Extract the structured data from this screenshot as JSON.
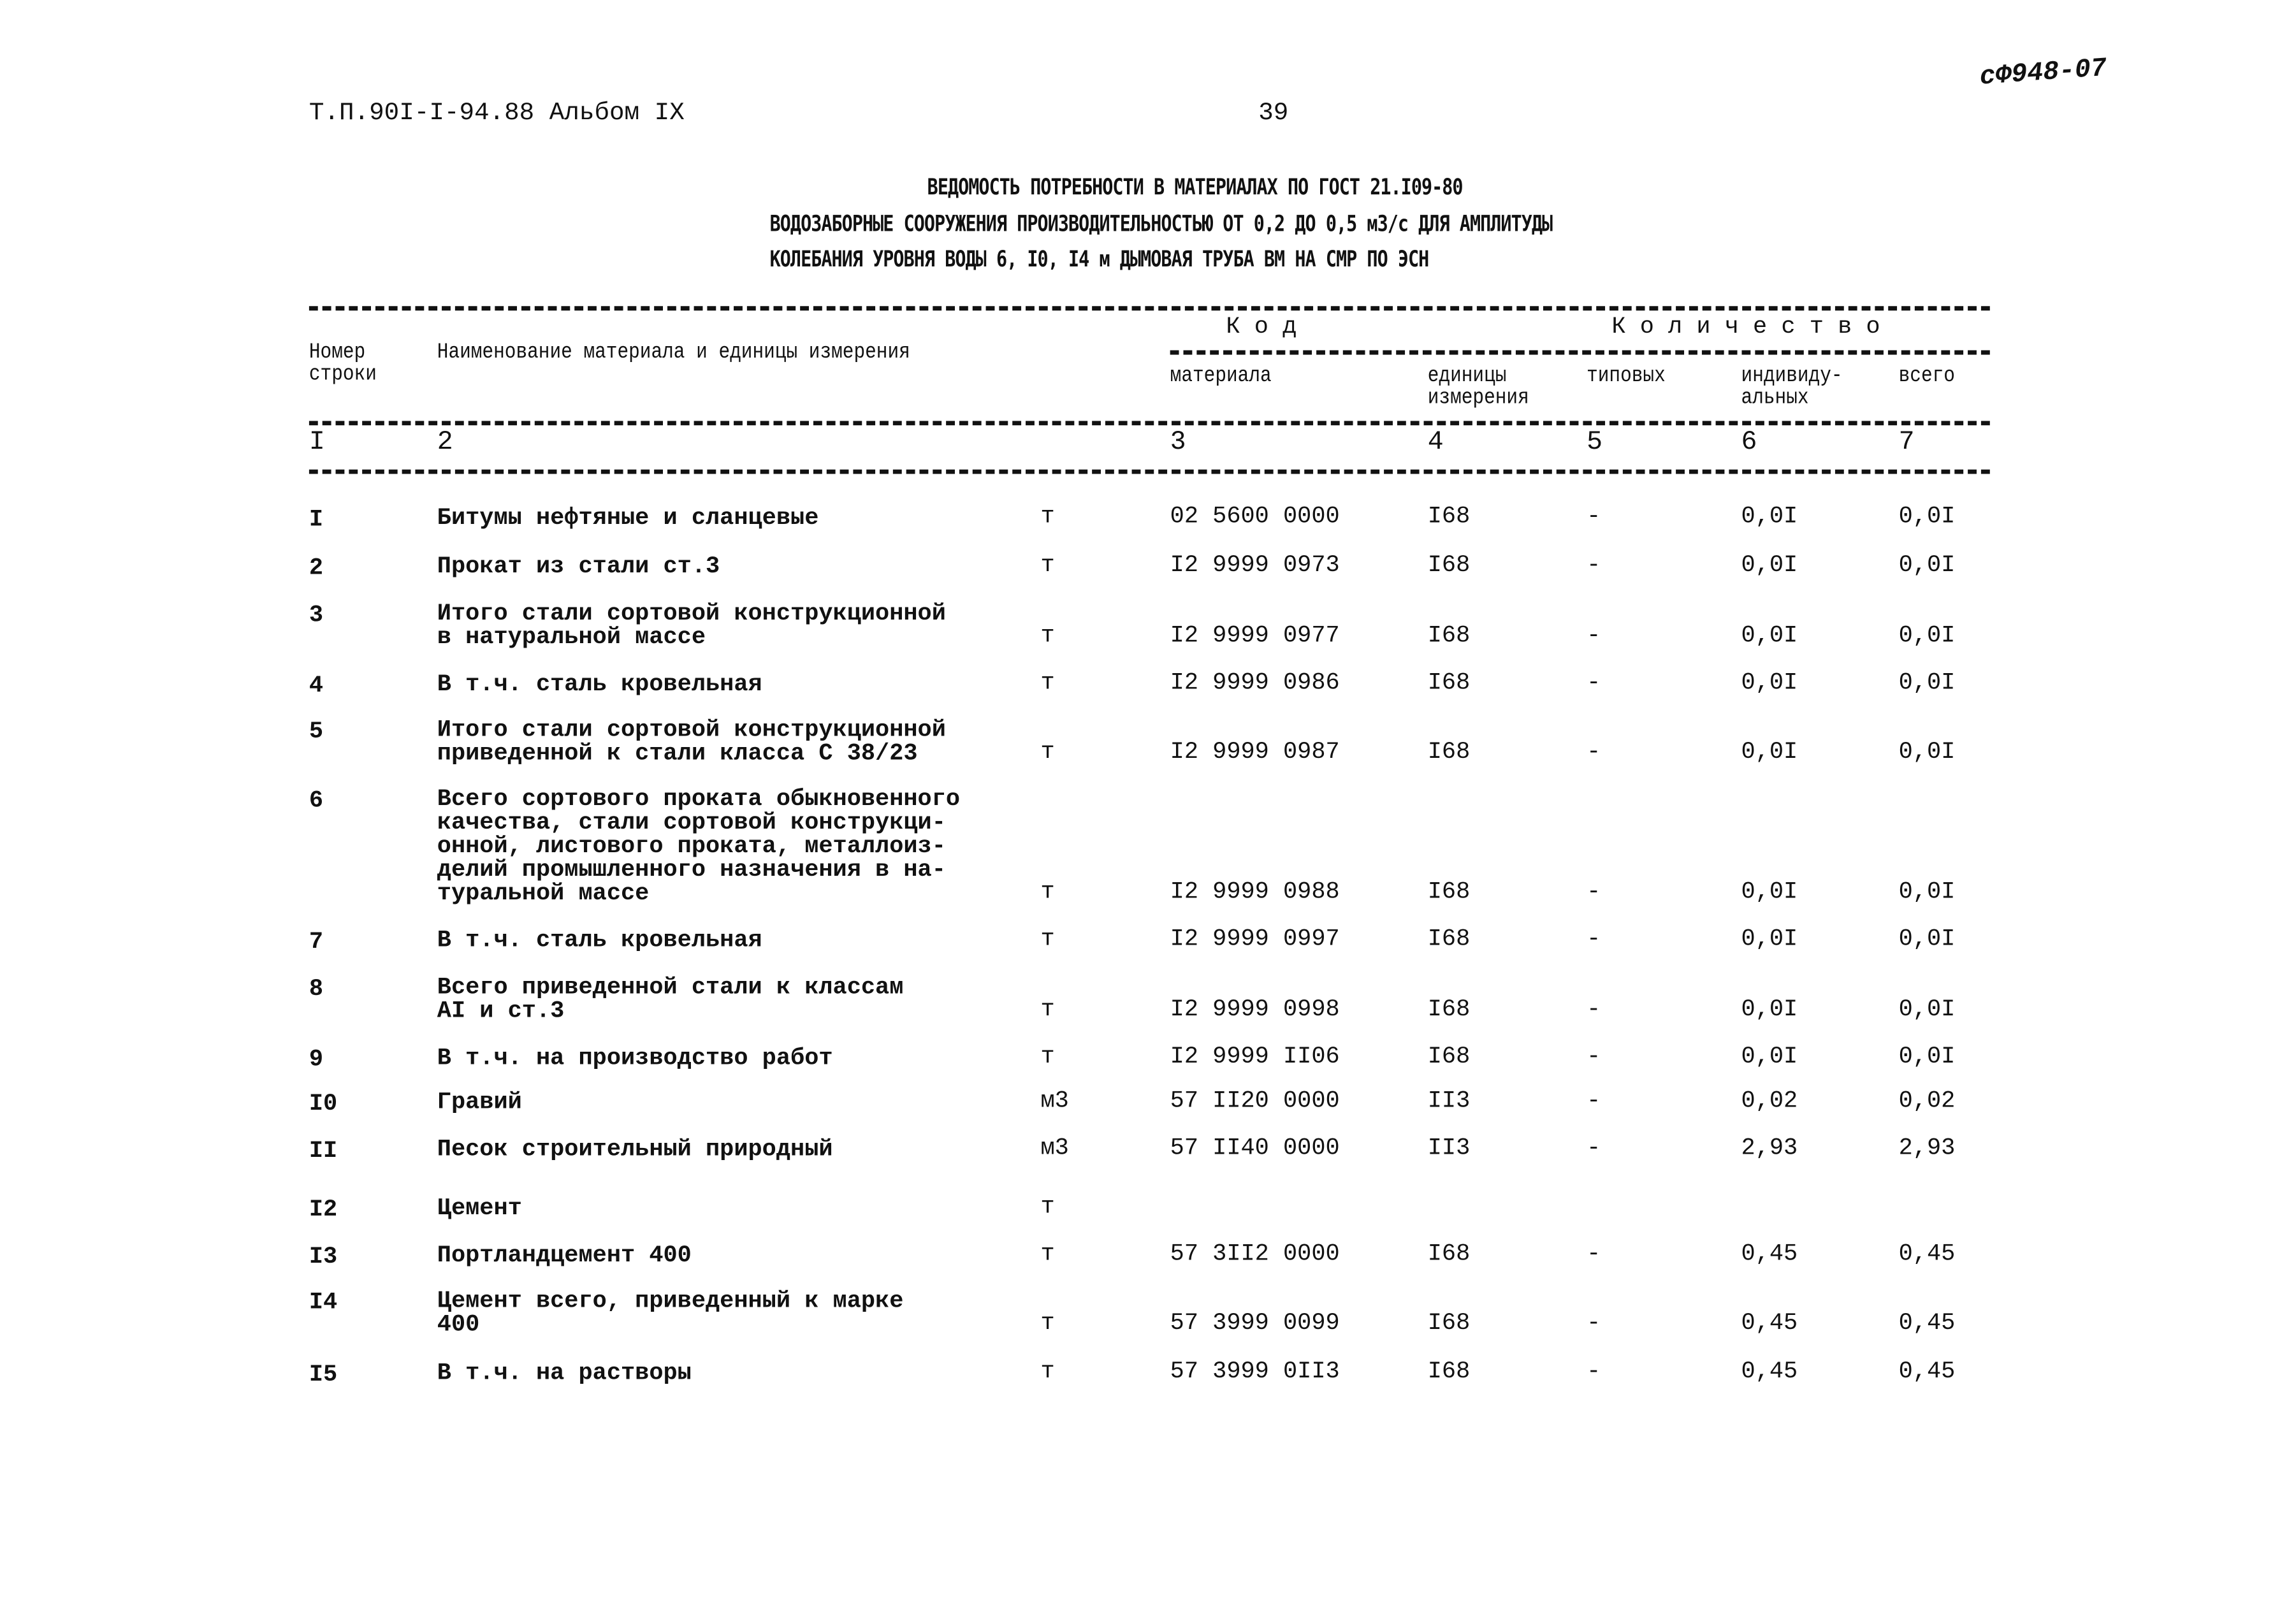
{
  "header": {
    "doc_ref": "Т.П.90I-I-94.88 Альбом IX",
    "page_number": "39",
    "handwritten_mark": "сФ948-07",
    "title_lines": [
      "ВЕДОМОСТЬ ПОТРЕБНОСТИ В МАТЕРИАЛАХ ПО ГОСТ 21.I09-80",
      "ВОДОЗАБОРНЫЕ СООРУЖЕНИЯ ПРОИЗВОДИТЕЛЬНОСТЬЮ ОТ 0,2 ДО 0,5 м3/с ДЛЯ АМПЛИТУДЫ",
      "КОЛЕБАНИЯ УРОВНЯ ВОДЫ 6, I0, I4 м   ДЫМОВАЯ ТРУБА    ВМ НА СМР ПО ЭСН"
    ]
  },
  "table": {
    "headers": {
      "row_no": "Номер\nстроки",
      "name": "Наименование материала и единицы измерения",
      "code_group": "К о д",
      "qty_group": "К о л и ч е с т в о",
      "material": "материала",
      "unit": "единицы\nизмерения",
      "typical": "типовых",
      "individual": "индивиду-\nальных",
      "total": "всего"
    },
    "column_numbers": [
      "I",
      "2",
      "3",
      "4",
      "5",
      "6",
      "7"
    ],
    "rows": [
      {
        "no": "I",
        "name": "Битумы нефтяные и сланцевые",
        "unit": "т",
        "code": "02 5600 0000",
        "unit_code": "I68",
        "typical": "-",
        "individual": "0,0I",
        "total": "0,0I"
      },
      {
        "no": "2",
        "name": "Прокат из стали ст.3",
        "unit": "т",
        "code": "I2 9999 0973",
        "unit_code": "I68",
        "typical": "-",
        "individual": "0,0I",
        "total": "0,0I"
      },
      {
        "no": "3",
        "name": "Итого стали сортовой конструкционной\nв натуральной массе",
        "unit": "т",
        "code": "I2 9999 0977",
        "unit_code": "I68",
        "typical": "-",
        "individual": "0,0I",
        "total": "0,0I"
      },
      {
        "no": "4",
        "name": "В т.ч. сталь кровельная",
        "unit": "т",
        "code": "I2 9999 0986",
        "unit_code": "I68",
        "typical": "-",
        "individual": "0,0I",
        "total": "0,0I"
      },
      {
        "no": "5",
        "name": "Итого стали сортовой конструкционной\nприведенной к стали класса С 38/23",
        "unit": "т",
        "code": "I2 9999 0987",
        "unit_code": "I68",
        "typical": "-",
        "individual": "0,0I",
        "total": "0,0I"
      },
      {
        "no": "6",
        "name": "Всего сортового проката обыкновенного\nкачества, стали сортовой конструкци-\nонной, листового проката, металлоиз-\nделий промышленного назначения в на-\nтуральной массе",
        "unit": "т",
        "code": "I2 9999 0988",
        "unit_code": "I68",
        "typical": "-",
        "individual": "0,0I",
        "total": "0,0I"
      },
      {
        "no": "7",
        "name": "В т.ч. сталь кровельная",
        "unit": "т",
        "code": "I2 9999 0997",
        "unit_code": "I68",
        "typical": "-",
        "individual": "0,0I",
        "total": "0,0I"
      },
      {
        "no": "8",
        "name": "Всего приведенной стали к классам\nAI и ст.3",
        "unit": "т",
        "code": "I2 9999 0998",
        "unit_code": "I68",
        "typical": "-",
        "individual": "0,0I",
        "total": "0,0I"
      },
      {
        "no": "9",
        "name": "В т.ч. на производство работ",
        "unit": "т",
        "code": "I2 9999 II06",
        "unit_code": "I68",
        "typical": "-",
        "individual": "0,0I",
        "total": "0,0I"
      },
      {
        "no": "I0",
        "name": "Гравий",
        "unit": "м3",
        "code": "57 II20 0000",
        "unit_code": "II3",
        "typical": "-",
        "individual": "0,02",
        "total": "0,02"
      },
      {
        "no": "II",
        "name": "Песок строительный природный",
        "unit": "м3",
        "code": "57 II40 0000",
        "unit_code": "II3",
        "typical": "-",
        "individual": "2,93",
        "total": "2,93"
      },
      {
        "no": "I2",
        "name": "Цемент",
        "unit": "т",
        "code": "",
        "unit_code": "",
        "typical": "",
        "individual": "",
        "total": ""
      },
      {
        "no": "I3",
        "name": "Портландцемент 400",
        "unit": "т",
        "code": "57 3II2 0000",
        "unit_code": "I68",
        "typical": "-",
        "individual": "0,45",
        "total": "0,45"
      },
      {
        "no": "I4",
        "name": "Цемент всего, приведенный к марке\n400",
        "unit": "т",
        "code": "57 3999 0099",
        "unit_code": "I68",
        "typical": "-",
        "individual": "0,45",
        "total": "0,45"
      },
      {
        "no": "I5",
        "name": "В т.ч. на растворы",
        "unit": "т",
        "code": "57 3999 0II3",
        "unit_code": "I68",
        "typical": "-",
        "individual": "0,45",
        "total": "0,45"
      }
    ]
  }
}
